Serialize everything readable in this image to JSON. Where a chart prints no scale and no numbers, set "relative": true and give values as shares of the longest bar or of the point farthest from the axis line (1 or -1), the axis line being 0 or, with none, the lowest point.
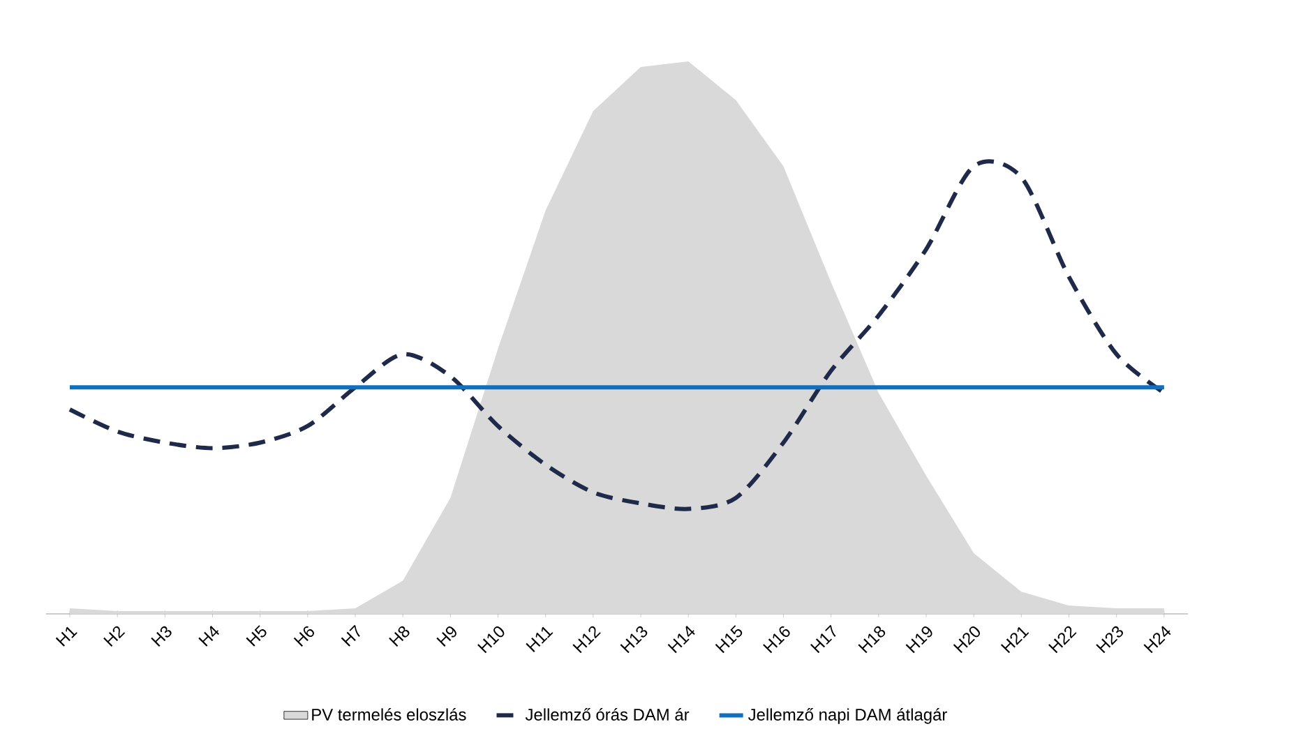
{
  "chart_data": {
    "type": "line",
    "relative": true,
    "legend": "bottom",
    "categories": [
      "H1",
      "H2",
      "H3",
      "H4",
      "H5",
      "H6",
      "H7",
      "H8",
      "H9",
      "H10",
      "H11",
      "H12",
      "H13",
      "H14",
      "H15",
      "H16",
      "H17",
      "H18",
      "H19",
      "H20",
      "H21",
      "H22",
      "H23",
      "H24"
    ],
    "series": [
      {
        "name": "PV termelés eloszlás",
        "type": "area",
        "color": "#d9d9d9",
        "values": [
          0.01,
          0.005,
          0.005,
          0.005,
          0.005,
          0.005,
          0.01,
          0.06,
          0.21,
          0.48,
          0.73,
          0.91,
          0.99,
          1,
          0.93,
          0.81,
          0.6,
          0.4,
          0.25,
          0.11,
          0.04,
          0.015,
          0.01,
          0.01
        ]
      },
      {
        "name": "Jellemző órás DAM ár",
        "line_style": "dashed",
        "color": "#1f2a4a",
        "values": [
          0.37,
          0.33,
          0.31,
          0.3,
          0.31,
          0.34,
          0.41,
          0.47,
          0.43,
          0.34,
          0.27,
          0.22,
          0.2,
          0.19,
          0.21,
          0.31,
          0.44,
          0.54,
          0.66,
          0.81,
          0.79,
          0.61,
          0.47,
          0.4
        ]
      },
      {
        "name": "Jellemző napi DAM átlagár",
        "line_style": "solid",
        "color": "#1070c0",
        "values": [
          0.41,
          0.41,
          0.41,
          0.41,
          0.41,
          0.41,
          0.41,
          0.41,
          0.41,
          0.41,
          0.41,
          0.41,
          0.41,
          0.41,
          0.41,
          0.41,
          0.41,
          0.41,
          0.41,
          0.41,
          0.41,
          0.41,
          0.41,
          0.41
        ]
      }
    ]
  }
}
